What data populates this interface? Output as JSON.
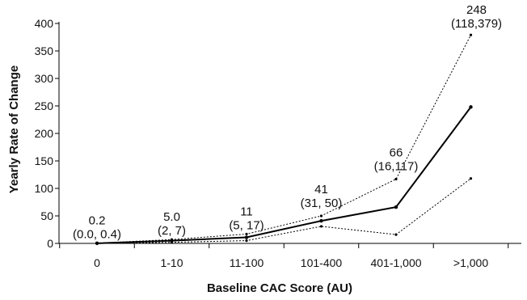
{
  "chart_data": {
    "type": "line",
    "title": "",
    "xlabel": "Baseline CAC Score (AU)",
    "ylabel": "Yearly Rate of Change",
    "categories": [
      "0",
      "1-10",
      "11-100",
      "101-400",
      "401-1,000",
      ">1,000"
    ],
    "ylim": [
      0,
      400
    ],
    "yticks": [
      0,
      50,
      100,
      150,
      200,
      250,
      300,
      350,
      400
    ],
    "grid": false,
    "legend": "none",
    "series": [
      {
        "values": [
          0.2,
          5.0,
          11,
          41,
          66,
          248
        ],
        "style": "solid",
        "color": "#000000"
      },
      {
        "values": [
          0.0,
          2,
          5,
          31,
          16,
          118
        ],
        "style": "dotted",
        "color": "#000000"
      },
      {
        "values": [
          0.4,
          7,
          17,
          50,
          117,
          379
        ],
        "style": "dotted",
        "color": "#000000"
      }
    ],
    "annotations": [
      {
        "category": "0",
        "value": "0.2",
        "ci": "(0.0, 0.4)"
      },
      {
        "category": "1-10",
        "value": "5.0",
        "ci": "(2, 7)"
      },
      {
        "category": "11-100",
        "value": "11",
        "ci": "(5, 17)"
      },
      {
        "category": "101-400",
        "value": "41",
        "ci": "(31, 50)"
      },
      {
        "category": "401-1,000",
        "value": "66",
        "ci": "(16,117)"
      },
      {
        "category": ">1,000",
        "value": "248",
        "ci": "(118,379)"
      }
    ]
  }
}
